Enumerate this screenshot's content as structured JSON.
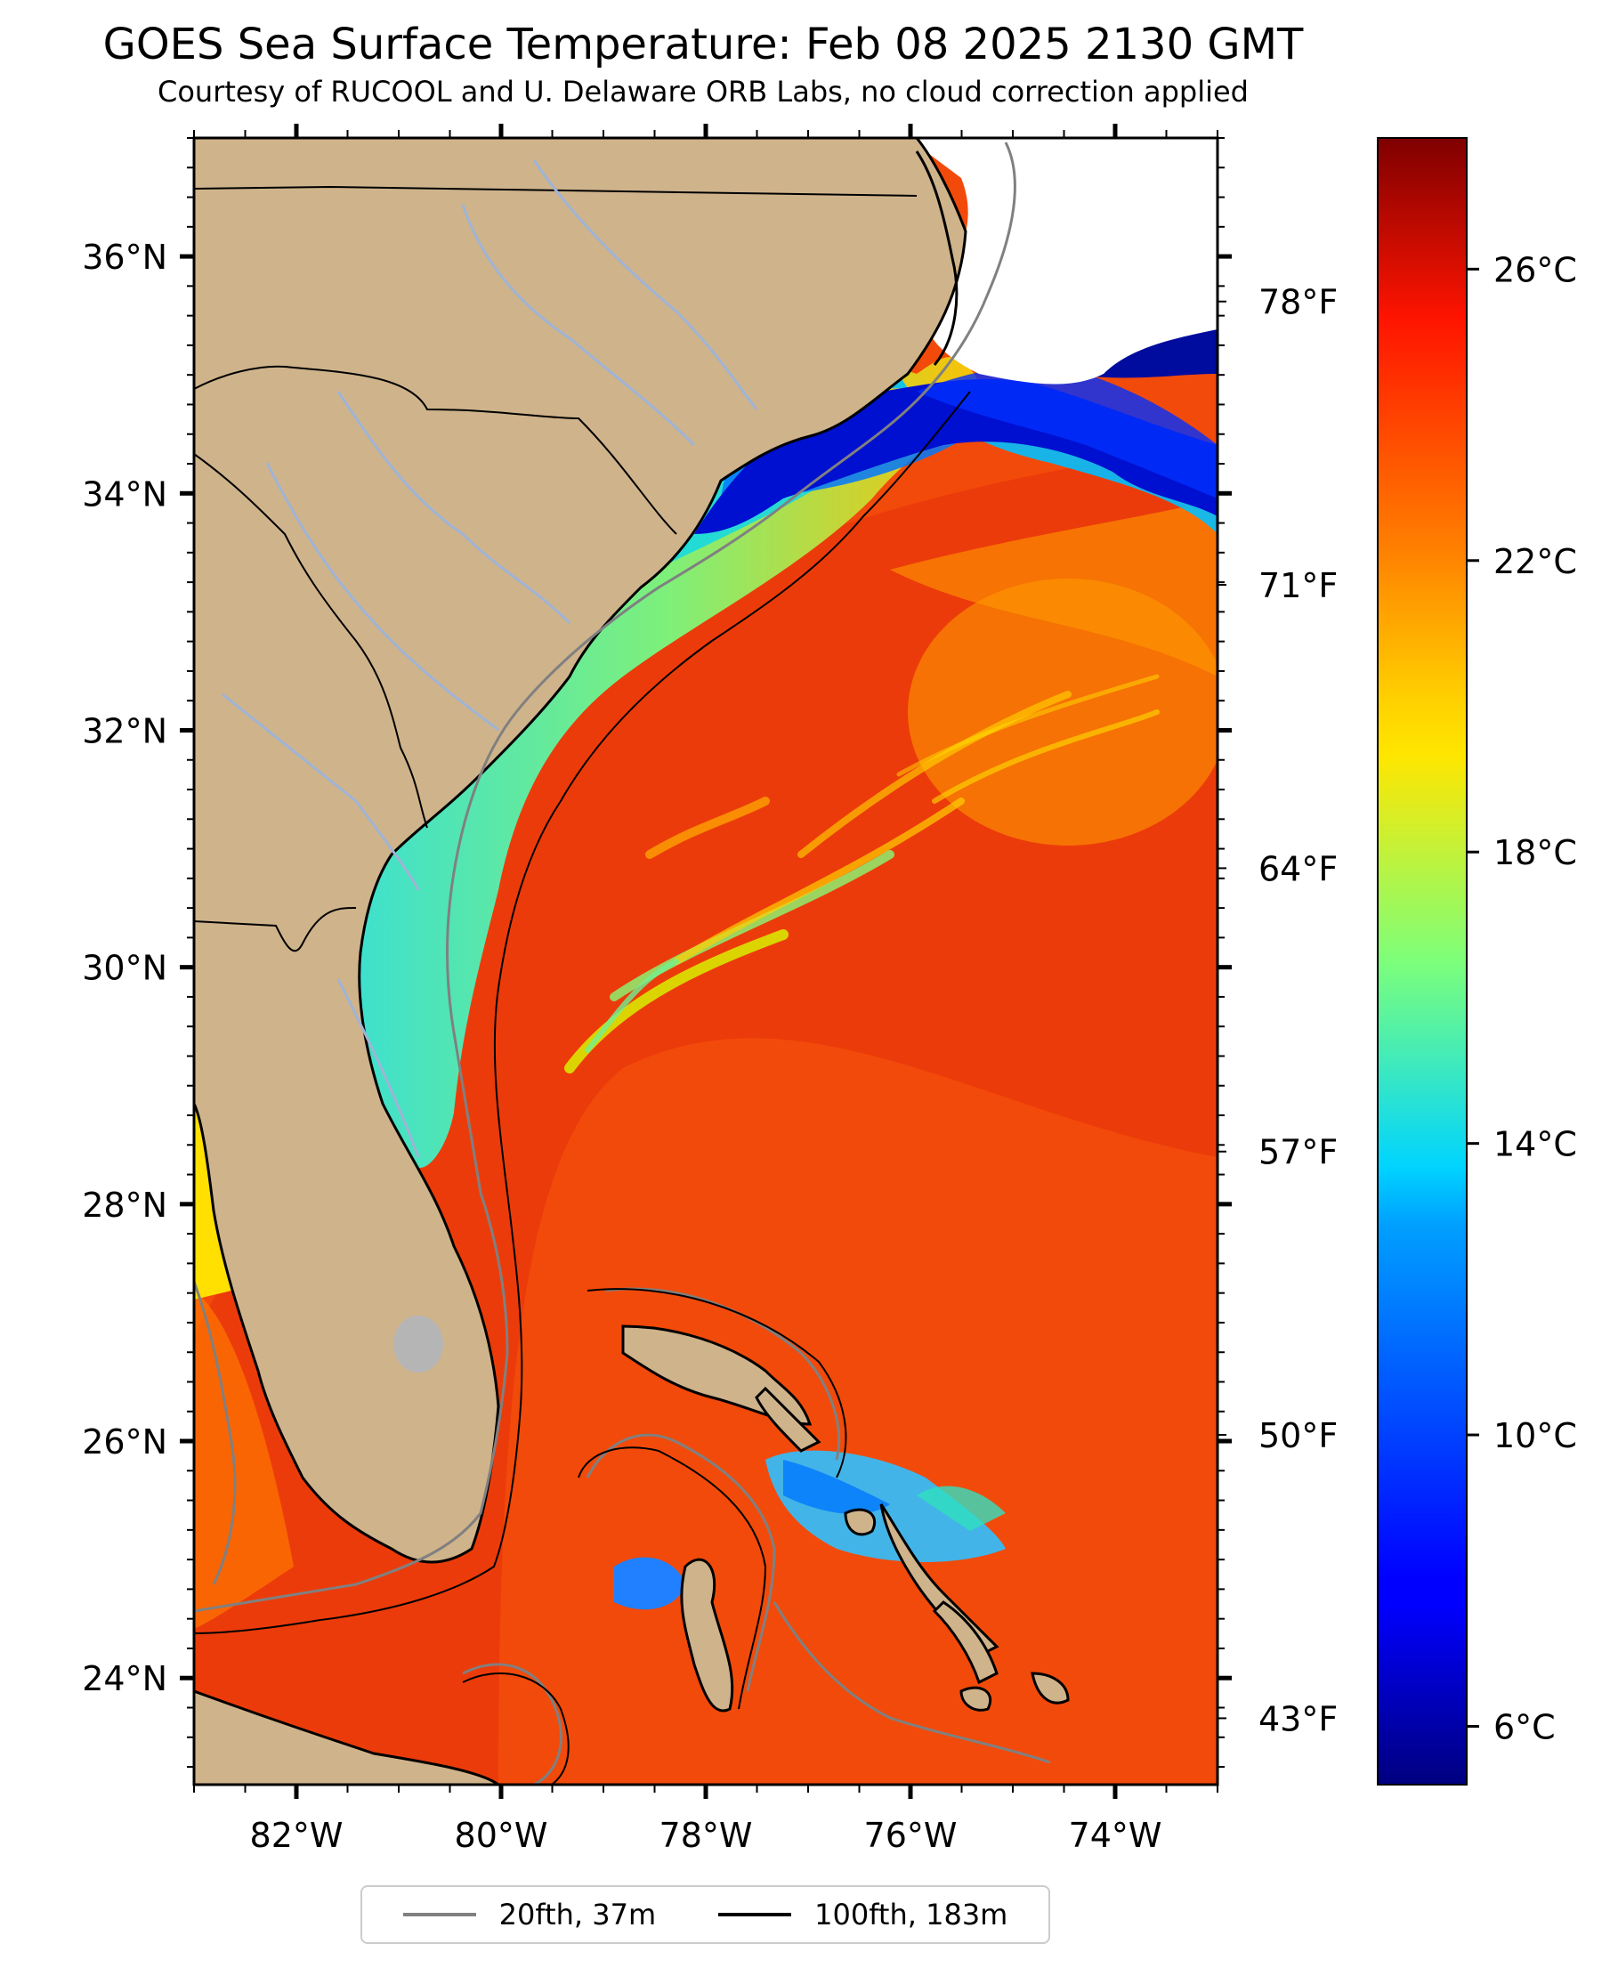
{
  "title": "GOES Sea Surface Temperature: Feb 08 2025 2130 GMT",
  "subtitle": "Courtesy of RUCOOL and U. Delaware ORB Labs, no cloud correction applied",
  "map": {
    "lon_range": [
      -83,
      -73
    ],
    "lat_range": [
      23.1,
      37.0
    ],
    "lon_ticks": [
      {
        "value": -82,
        "label": "82°W"
      },
      {
        "value": -80,
        "label": "80°W"
      },
      {
        "value": -78,
        "label": "78°W"
      },
      {
        "value": -76,
        "label": "76°W"
      },
      {
        "value": -74,
        "label": "74°W"
      }
    ],
    "lat_ticks": [
      {
        "value": 36,
        "label": "36°N"
      },
      {
        "value": 34,
        "label": "34°N"
      },
      {
        "value": 32,
        "label": "32°N"
      },
      {
        "value": 30,
        "label": "30°N"
      },
      {
        "value": 28,
        "label": "28°N"
      },
      {
        "value": 26,
        "label": "26°N"
      },
      {
        "value": 24,
        "label": "24°N"
      }
    ],
    "colors": {
      "land": "#cfb38b",
      "river": "#9fb4d6",
      "lake": "#b5b5b5",
      "coast": "#000000",
      "iso20": "#808080",
      "iso100": "#000000"
    }
  },
  "colorbar": {
    "colormap": "jet",
    "celsius_range": [
      5.2,
      27.8
    ],
    "celsius_ticks": [
      {
        "value": 6,
        "label": "6°C"
      },
      {
        "value": 10,
        "label": "10°C"
      },
      {
        "value": 14,
        "label": "14°C"
      },
      {
        "value": 18,
        "label": "18°C"
      },
      {
        "value": 22,
        "label": "22°C"
      },
      {
        "value": 26,
        "label": "26°C"
      }
    ],
    "fahrenheit_ticks": [
      {
        "value": 43,
        "label": "43°F"
      },
      {
        "value": 50,
        "label": "50°F"
      },
      {
        "value": 57,
        "label": "57°F"
      },
      {
        "value": 64,
        "label": "64°F"
      },
      {
        "value": 71,
        "label": "71°F"
      },
      {
        "value": 78,
        "label": "78°F"
      }
    ]
  },
  "legend": {
    "items": [
      {
        "label": "20fth, 37m",
        "color": "#808080"
      },
      {
        "label": "100fth, 183m",
        "color": "#000000"
      }
    ]
  }
}
